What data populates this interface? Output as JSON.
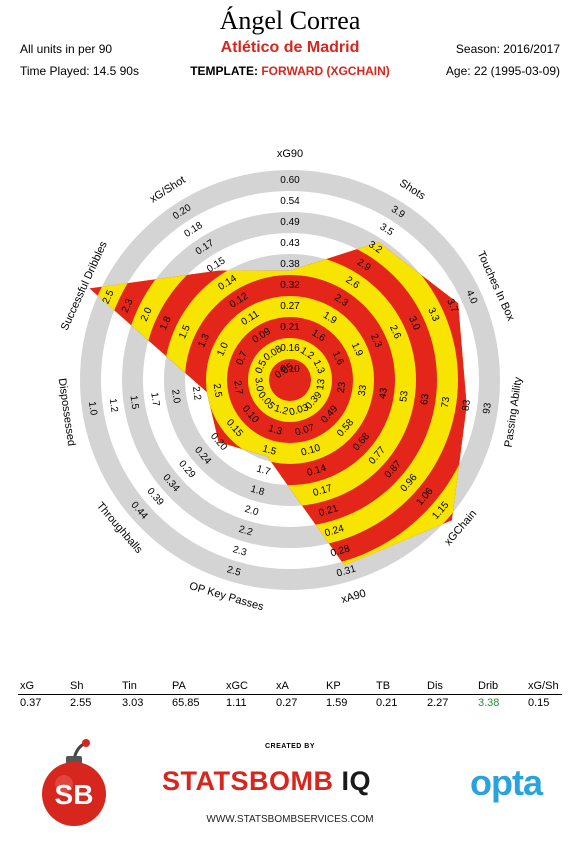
{
  "header": {
    "player_name": "Ángel Correa",
    "club": "Atlético de Madrid",
    "units": "All units in per 90",
    "time_played": "Time Played: 14.5 90s",
    "template_label": "TEMPLATE:",
    "template_value": "FORWARD (XGCHAIN)",
    "season": "Season: 2016/2017",
    "age": "Age: 22 (1995-03-09)"
  },
  "colors": {
    "red": "#e32619",
    "yellow": "#f7e400",
    "ring_gray": "#d4d4d4",
    "accent": "#d7261e",
    "drib_value": "#2e8b3d"
  },
  "chart_data": {
    "type": "radar",
    "axes": [
      {
        "name": "xG90",
        "ticks": [
          "0.10",
          "0.16",
          "0.21",
          "0.27",
          "0.32",
          "0.38",
          "0.43",
          "0.49",
          "0.54",
          "0.60"
        ],
        "value": 0.37
      },
      {
        "name": "Shots",
        "ticks": [
          "1.2",
          "1.6",
          "1.9",
          "2.3",
          "2.6",
          "2.9",
          "3.2",
          "3.5",
          "3.9"
        ],
        "value": 2.55
      },
      {
        "name": "Touches In Box",
        "ticks": [
          "1.3",
          "1.6",
          "1.9",
          "2.3",
          "2.6",
          "3.0",
          "3.3",
          "3.7",
          "4.0"
        ],
        "value": 3.03
      },
      {
        "name": "Passing Ability",
        "ticks": [
          "13",
          "23",
          "33",
          "43",
          "53",
          "63",
          "73",
          "83",
          "93"
        ],
        "value": 65.85
      },
      {
        "name": "xGChain",
        "ticks": [
          "0.39",
          "0.49",
          "0.58",
          "0.68",
          "0.77",
          "0.87",
          "0.96",
          "1.06",
          "1.15"
        ],
        "value": 1.11
      },
      {
        "name": "xA90",
        "ticks": [
          "0.03",
          "0.07",
          "0.10",
          "0.14",
          "0.17",
          "0.21",
          "0.24",
          "0.28",
          "0.31"
        ],
        "value": 0.27
      },
      {
        "name": "OP Key Passes",
        "ticks": [
          "1.2",
          "1.3",
          "1.5",
          "1.7",
          "1.8",
          "2.0",
          "2.2",
          "2.3",
          "2.5"
        ],
        "value": 1.59
      },
      {
        "name": "Throughballs",
        "ticks": [
          "0.05",
          "0.10",
          "0.15",
          "0.20",
          "0.24",
          "0.29",
          "0.34",
          "0.39",
          "0.44"
        ],
        "value": 0.21
      },
      {
        "name": "Dispossessed",
        "ticks": [
          "3.0",
          "2.7",
          "2.5",
          "2.2",
          "2.0",
          "1.7",
          "1.5",
          "1.2",
          "1.0"
        ],
        "value": 2.27
      },
      {
        "name": "Successful Dribbles",
        "ticks": [
          "0.5",
          "0.7",
          "1.0",
          "1.3",
          "1.5",
          "1.8",
          "2.0",
          "2.3",
          "2.5"
        ],
        "value": 3.38
      },
      {
        "name": "xG/Shot",
        "ticks": [
          "0.05",
          "0.08",
          "0.09",
          "0.11",
          "0.12",
          "0.14",
          "0.15",
          "0.17",
          "0.18",
          "0.20"
        ],
        "value": 0.15
      }
    ],
    "area_fraction": [
      0.52,
      0.78,
      0.88,
      0.85,
      1.02,
      0.92,
      0.38,
      0.45,
      0.4,
      1.05,
      0.62
    ]
  },
  "stats": {
    "headers": [
      "xG",
      "Sh",
      "Tin",
      "PA",
      "xGC",
      "xA",
      "KP",
      "TB",
      "Dis",
      "Drib",
      "xG/Sh"
    ],
    "values": [
      "0.37",
      "2.55",
      "3.03",
      "65.85",
      "1.11",
      "0.27",
      "1.59",
      "0.21",
      "2.27",
      "3.38",
      "0.15"
    ]
  },
  "footer": {
    "created_by": "CREATED BY",
    "brand_main": "STATSBOMB",
    "brand_iq": "IQ",
    "website": "WWW.STATSBOMBSERVICES.COM",
    "opta": "opta",
    "sb_logo_text": "SB"
  }
}
